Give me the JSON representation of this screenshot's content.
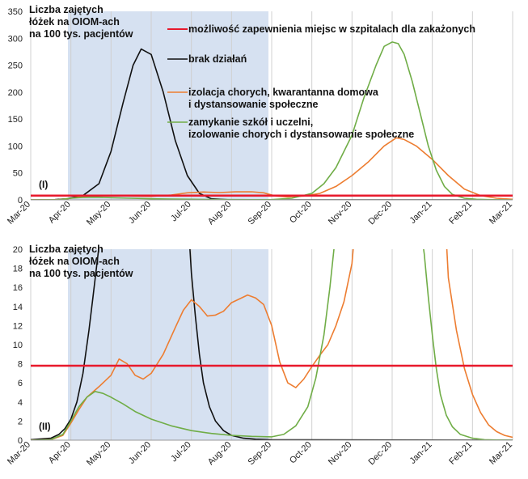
{
  "chart_data": [
    {
      "type": "line",
      "panel_label": "(I)",
      "ylabel": [
        "Liczba zajętych",
        "łóżek na OIOM-ach",
        "na 100 tys. pacjentów"
      ],
      "ylim": [
        0,
        350
      ],
      "yticks": [
        0,
        50,
        100,
        150,
        200,
        250,
        300,
        350
      ],
      "x_tick_labels": [
        "Mar-20",
        "Apr-20",
        "May-20",
        "Jun-20",
        "Jul-20",
        "Aug-20",
        "Sep-20",
        "Oct-20",
        "Nov-20",
        "Dec-20",
        "Jan-21",
        "Feb-21",
        "Mar-21"
      ],
      "shaded_range": [
        "Apr-20",
        "Sep-20"
      ],
      "threshold": 8,
      "grid": "vertical",
      "legend_location": "top-center",
      "series": [
        {
          "name": "brak działań",
          "color": "#111111",
          "x": [
            0,
            0.6,
            0.9,
            1.3,
            1.7,
            2.0,
            2.3,
            2.55,
            2.75,
            3.0,
            3.3,
            3.6,
            3.9,
            4.2,
            4.5,
            5.0,
            12
          ],
          "y": [
            0,
            0.5,
            2,
            8,
            30,
            90,
            180,
            250,
            280,
            270,
            200,
            110,
            45,
            12,
            2,
            0,
            0
          ]
        },
        {
          "name": "izolacja chorych, kwarantanna domowa i dystansowanie społeczne",
          "color": "#ED7D31",
          "x": [
            0,
            0.7,
            1.0,
            1.3,
            1.7,
            2.0,
            2.5,
            3.0,
            3.5,
            3.9,
            4.3,
            4.7,
            5.1,
            5.5,
            5.8,
            6.1,
            6.4,
            6.8,
            7.2,
            7.6,
            8.0,
            8.4,
            8.8,
            9.1,
            9.3,
            9.6,
            10.0,
            10.4,
            10.8,
            11.2,
            11.6,
            12
          ],
          "y": [
            0,
            0.5,
            3,
            6,
            8,
            8,
            7,
            6.5,
            9,
            13,
            14.5,
            13.5,
            14.8,
            15,
            13,
            7,
            5.5,
            7,
            12,
            25,
            45,
            70,
            100,
            115,
            112,
            100,
            75,
            45,
            20,
            8,
            3,
            1
          ]
        },
        {
          "name": "zamykanie szkół i uczelni, izolowanie chorych i dystansowanie społeczne",
          "color": "#70AD47",
          "x": [
            0,
            0.7,
            1.0,
            1.3,
            1.6,
            2.0,
            2.5,
            3.0,
            3.5,
            4.0,
            4.5,
            5.0,
            5.5,
            6.0,
            6.5,
            7.0,
            7.3,
            7.6,
            8.0,
            8.3,
            8.6,
            8.8,
            9.0,
            9.15,
            9.3,
            9.5,
            9.7,
            9.9,
            10.1,
            10.3,
            10.5,
            10.8,
            11.1,
            11.5,
            12
          ],
          "y": [
            0,
            0.3,
            3,
            4.5,
            5,
            4,
            3,
            2,
            1.3,
            1,
            0.6,
            0.4,
            0.3,
            0.5,
            3,
            12,
            30,
            60,
            120,
            190,
            250,
            285,
            293,
            290,
            270,
            220,
            160,
            100,
            55,
            25,
            10,
            3,
            1,
            0.3,
            0
          ]
        },
        {
          "name": "możliwość zapewnienia miejsc w szpitalach dla zakażonych",
          "color": "#E8192C",
          "x": [
            0,
            12
          ],
          "y": [
            8,
            8
          ]
        }
      ]
    },
    {
      "type": "line",
      "panel_label": "(II)",
      "ylabel": [
        "Liczba zajętych",
        "łóżek na OIOM-ach",
        "na 100 tys. pacjentów"
      ],
      "ylim": [
        0,
        20
      ],
      "yticks": [
        0,
        2,
        4,
        6,
        8,
        10,
        12,
        14,
        16,
        18,
        20
      ],
      "x_tick_labels": [
        "Mar-20",
        "Apr-20",
        "May-20",
        "Jun-20",
        "Jul-20",
        "Aug-20",
        "Sep-20",
        "Oct-20",
        "Nov-20",
        "Dec-20",
        "Jan-21",
        "Feb-21",
        "Mar-21"
      ],
      "shaded_range": [
        "Apr-20",
        "Sep-20"
      ],
      "threshold": 7.8,
      "grid": "vertical",
      "series": [
        {
          "name": "brak działań",
          "color": "#111111",
          "x": [
            0,
            0.5,
            0.7,
            0.85,
            1.0,
            1.15,
            1.3,
            1.45,
            1.55,
            1.65,
            1.72,
            1.78,
            3.9,
            3.95,
            4.0,
            4.1,
            4.2,
            4.3,
            4.45,
            4.6,
            4.8,
            5.0,
            5.3,
            5.6,
            6.0,
            12
          ],
          "y": [
            0.05,
            0.2,
            0.6,
            1.2,
            2.2,
            4,
            7,
            11.5,
            15,
            18.5,
            21,
            23,
            23,
            21,
            17.5,
            13,
            9,
            6,
            3.5,
            2,
            1,
            0.5,
            0.2,
            0.1,
            0.05,
            0
          ]
        },
        {
          "name": "izolacja chorych, kwarantanna domowa i dystansowanie społeczne",
          "color": "#ED7D31",
          "x": [
            0,
            0.5,
            0.8,
            1.0,
            1.2,
            1.4,
            1.7,
            2.0,
            2.2,
            2.4,
            2.6,
            2.8,
            3.0,
            3.3,
            3.6,
            3.8,
            4.0,
            4.2,
            4.4,
            4.6,
            4.8,
            5.0,
            5.2,
            5.4,
            5.6,
            5.8,
            6.0,
            6.2,
            6.4,
            6.6,
            6.8,
            7.0,
            7.2,
            7.4,
            7.6,
            7.8,
            8.0,
            8.05,
            10.35,
            10.4,
            10.6,
            10.8,
            11.0,
            11.2,
            11.4,
            11.6,
            11.8,
            12.0
          ],
          "y": [
            0,
            0.05,
            0.5,
            1.8,
            3.2,
            4.5,
            5.6,
            6.8,
            8.5,
            8.0,
            6.8,
            6.4,
            7.0,
            9.0,
            11.8,
            13.6,
            14.7,
            14.0,
            13.0,
            13.1,
            13.5,
            14.4,
            14.8,
            15.2,
            14.9,
            14.2,
            12.0,
            8.2,
            6.0,
            5.5,
            6.4,
            7.7,
            8.9,
            10.0,
            12.0,
            14.5,
            18.5,
            21,
            21,
            17.0,
            11.5,
            7.5,
            4.8,
            2.9,
            1.6,
            0.9,
            0.5,
            0.3
          ]
        },
        {
          "name": "zamykanie szkół i uczelni, izolowanie chorych i dystansowanie społeczne",
          "color": "#70AD47",
          "x": [
            0,
            0.5,
            0.8,
            1.0,
            1.2,
            1.4,
            1.6,
            1.8,
            2.0,
            2.3,
            2.6,
            3.0,
            3.5,
            4.0,
            4.5,
            5.0,
            5.5,
            6.0,
            6.3,
            6.6,
            6.9,
            7.1,
            7.3,
            7.45,
            7.55,
            7.6,
            9.75,
            9.8,
            9.9,
            10.0,
            10.1,
            10.2,
            10.35,
            10.5,
            10.7,
            11.0,
            11.3,
            11.6,
            12.0
          ],
          "y": [
            0,
            0.05,
            0.6,
            2.0,
            3.5,
            4.5,
            5.1,
            4.9,
            4.5,
            3.8,
            3.0,
            2.2,
            1.5,
            1.0,
            0.7,
            0.5,
            0.4,
            0.35,
            0.6,
            1.5,
            3.5,
            6.5,
            11,
            16,
            20,
            21,
            21,
            19.5,
            15,
            11,
            7.5,
            4.8,
            2.6,
            1.4,
            0.6,
            0.2,
            0.05,
            0.02,
            0
          ]
        },
        {
          "name": "możliwość zapewnienia miejsc w szpitalach dla zakażonych",
          "color": "#E8192C",
          "x": [
            0,
            12
          ],
          "y": [
            7.8,
            7.8
          ]
        }
      ]
    }
  ]
}
